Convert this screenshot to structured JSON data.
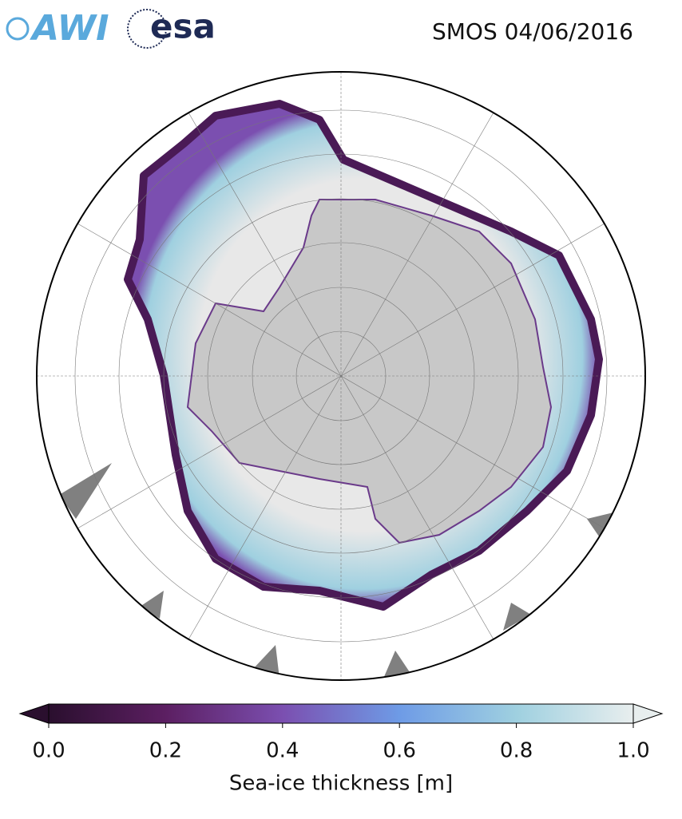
{
  "header": {
    "logos": [
      "AWI",
      "esa"
    ],
    "title": "SMOS 04/06/2016"
  },
  "colorbar": {
    "label": "Sea-ice thickness [m]",
    "lim": [
      0,
      1
    ],
    "ticks": [
      {
        "value": 0,
        "label": "0.0"
      },
      0.2,
      0.4,
      0.6,
      0.8,
      {
        "value": 1,
        "label": "1.0"
      }
    ],
    "colors": [
      "#2a0f2e",
      "#5c1f62",
      "#7b4fb0",
      "#6e9be6",
      "#9fd0e0",
      "#e8eeee"
    ]
  }
}
